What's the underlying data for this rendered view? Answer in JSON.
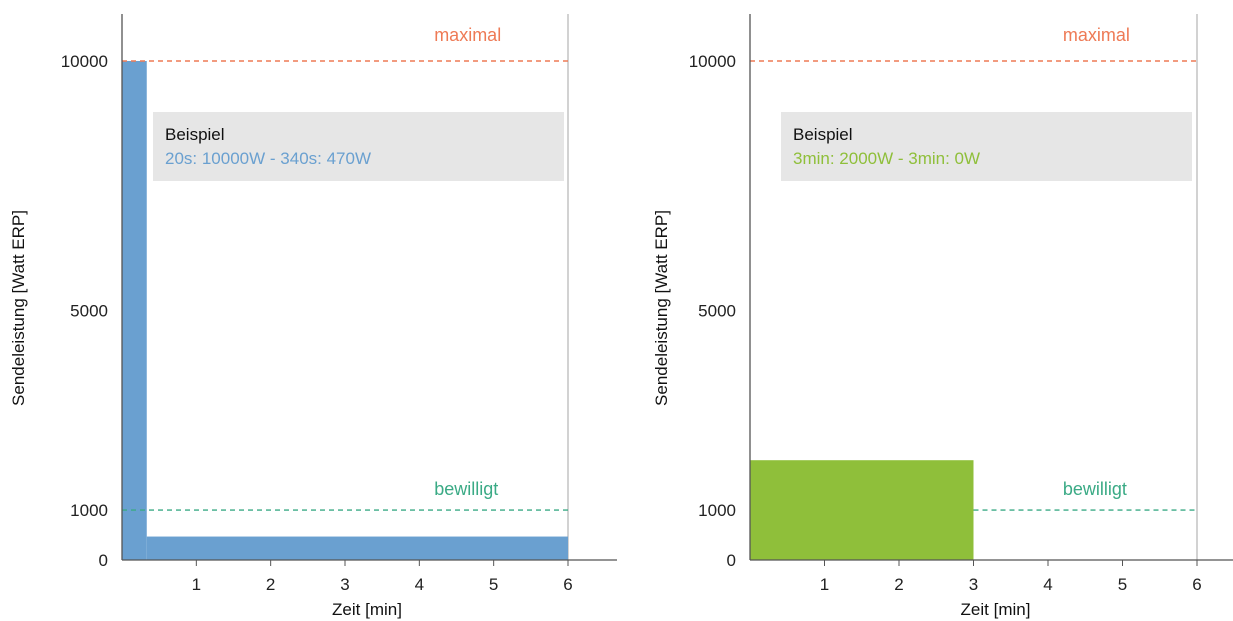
{
  "chart_data": [
    {
      "type": "area",
      "xlabel": "Zeit [min]",
      "ylabel": "Sendeleistung [Watt ERP]",
      "xlim": [
        0,
        6.6
      ],
      "ylim": [
        0,
        11000
      ],
      "x_ticks": [
        1,
        2,
        3,
        4,
        5,
        6
      ],
      "y_ticks": [
        {
          "value": 0,
          "label": "0",
          "color": "#222222"
        },
        {
          "value": 1000,
          "label": "1000",
          "color": "#3aaa85"
        },
        {
          "value": 5000,
          "label": "5000",
          "color": "#222222"
        },
        {
          "value": 10000,
          "label": "10000",
          "color": "#ee7a55"
        }
      ],
      "reference_lines": [
        {
          "name": "maximal",
          "y": 10000,
          "color": "#ee7a55",
          "label_x": 4.2,
          "x_end": 6
        },
        {
          "name": "bewilligt",
          "y": 1000,
          "color": "#3aaa85",
          "label_x": 4.2,
          "x_end": 6
        }
      ],
      "limit_x": 6,
      "series": [
        {
          "color": "#6aa0d0",
          "segments": [
            {
              "x_start": 0,
              "x_end": 0.333,
              "value": 10000
            },
            {
              "x_start": 0.333,
              "x_end": 6,
              "value": 470
            }
          ]
        }
      ],
      "annotation": {
        "title": "Beispiel",
        "text": "20s: 10000W - 340s: 470W",
        "color": "#6aa0d0"
      }
    },
    {
      "type": "area",
      "xlabel": "Zeit [min]",
      "ylabel": "Sendeleistung [Watt ERP]",
      "xlim": [
        0,
        6.6
      ],
      "ylim": [
        0,
        11000
      ],
      "x_ticks": [
        1,
        2,
        3,
        4,
        5,
        6
      ],
      "y_ticks": [
        {
          "value": 0,
          "label": "0",
          "color": "#222222"
        },
        {
          "value": 1000,
          "label": "1000",
          "color": "#3aaa85"
        },
        {
          "value": 5000,
          "label": "5000",
          "color": "#222222"
        },
        {
          "value": 10000,
          "label": "10000",
          "color": "#ee7a55"
        }
      ],
      "reference_lines": [
        {
          "name": "maximal",
          "y": 10000,
          "color": "#ee7a55",
          "label_x": 4.2,
          "x_start": 0,
          "x_end": 6
        },
        {
          "name": "bewilligt",
          "y": 1000,
          "color": "#3aaa85",
          "label_x": 4.2,
          "x_start": 3,
          "x_end": 6
        }
      ],
      "limit_x": 6,
      "series": [
        {
          "color": "#8fbf3a",
          "segments": [
            {
              "x_start": 0,
              "x_end": 3,
              "value": 2000
            },
            {
              "x_start": 3,
              "x_end": 6,
              "value": 0
            }
          ]
        }
      ],
      "annotation": {
        "title": "Beispiel",
        "text": "3min: 2000W - 3min: 0W",
        "color": "#8fbf3a"
      }
    }
  ]
}
